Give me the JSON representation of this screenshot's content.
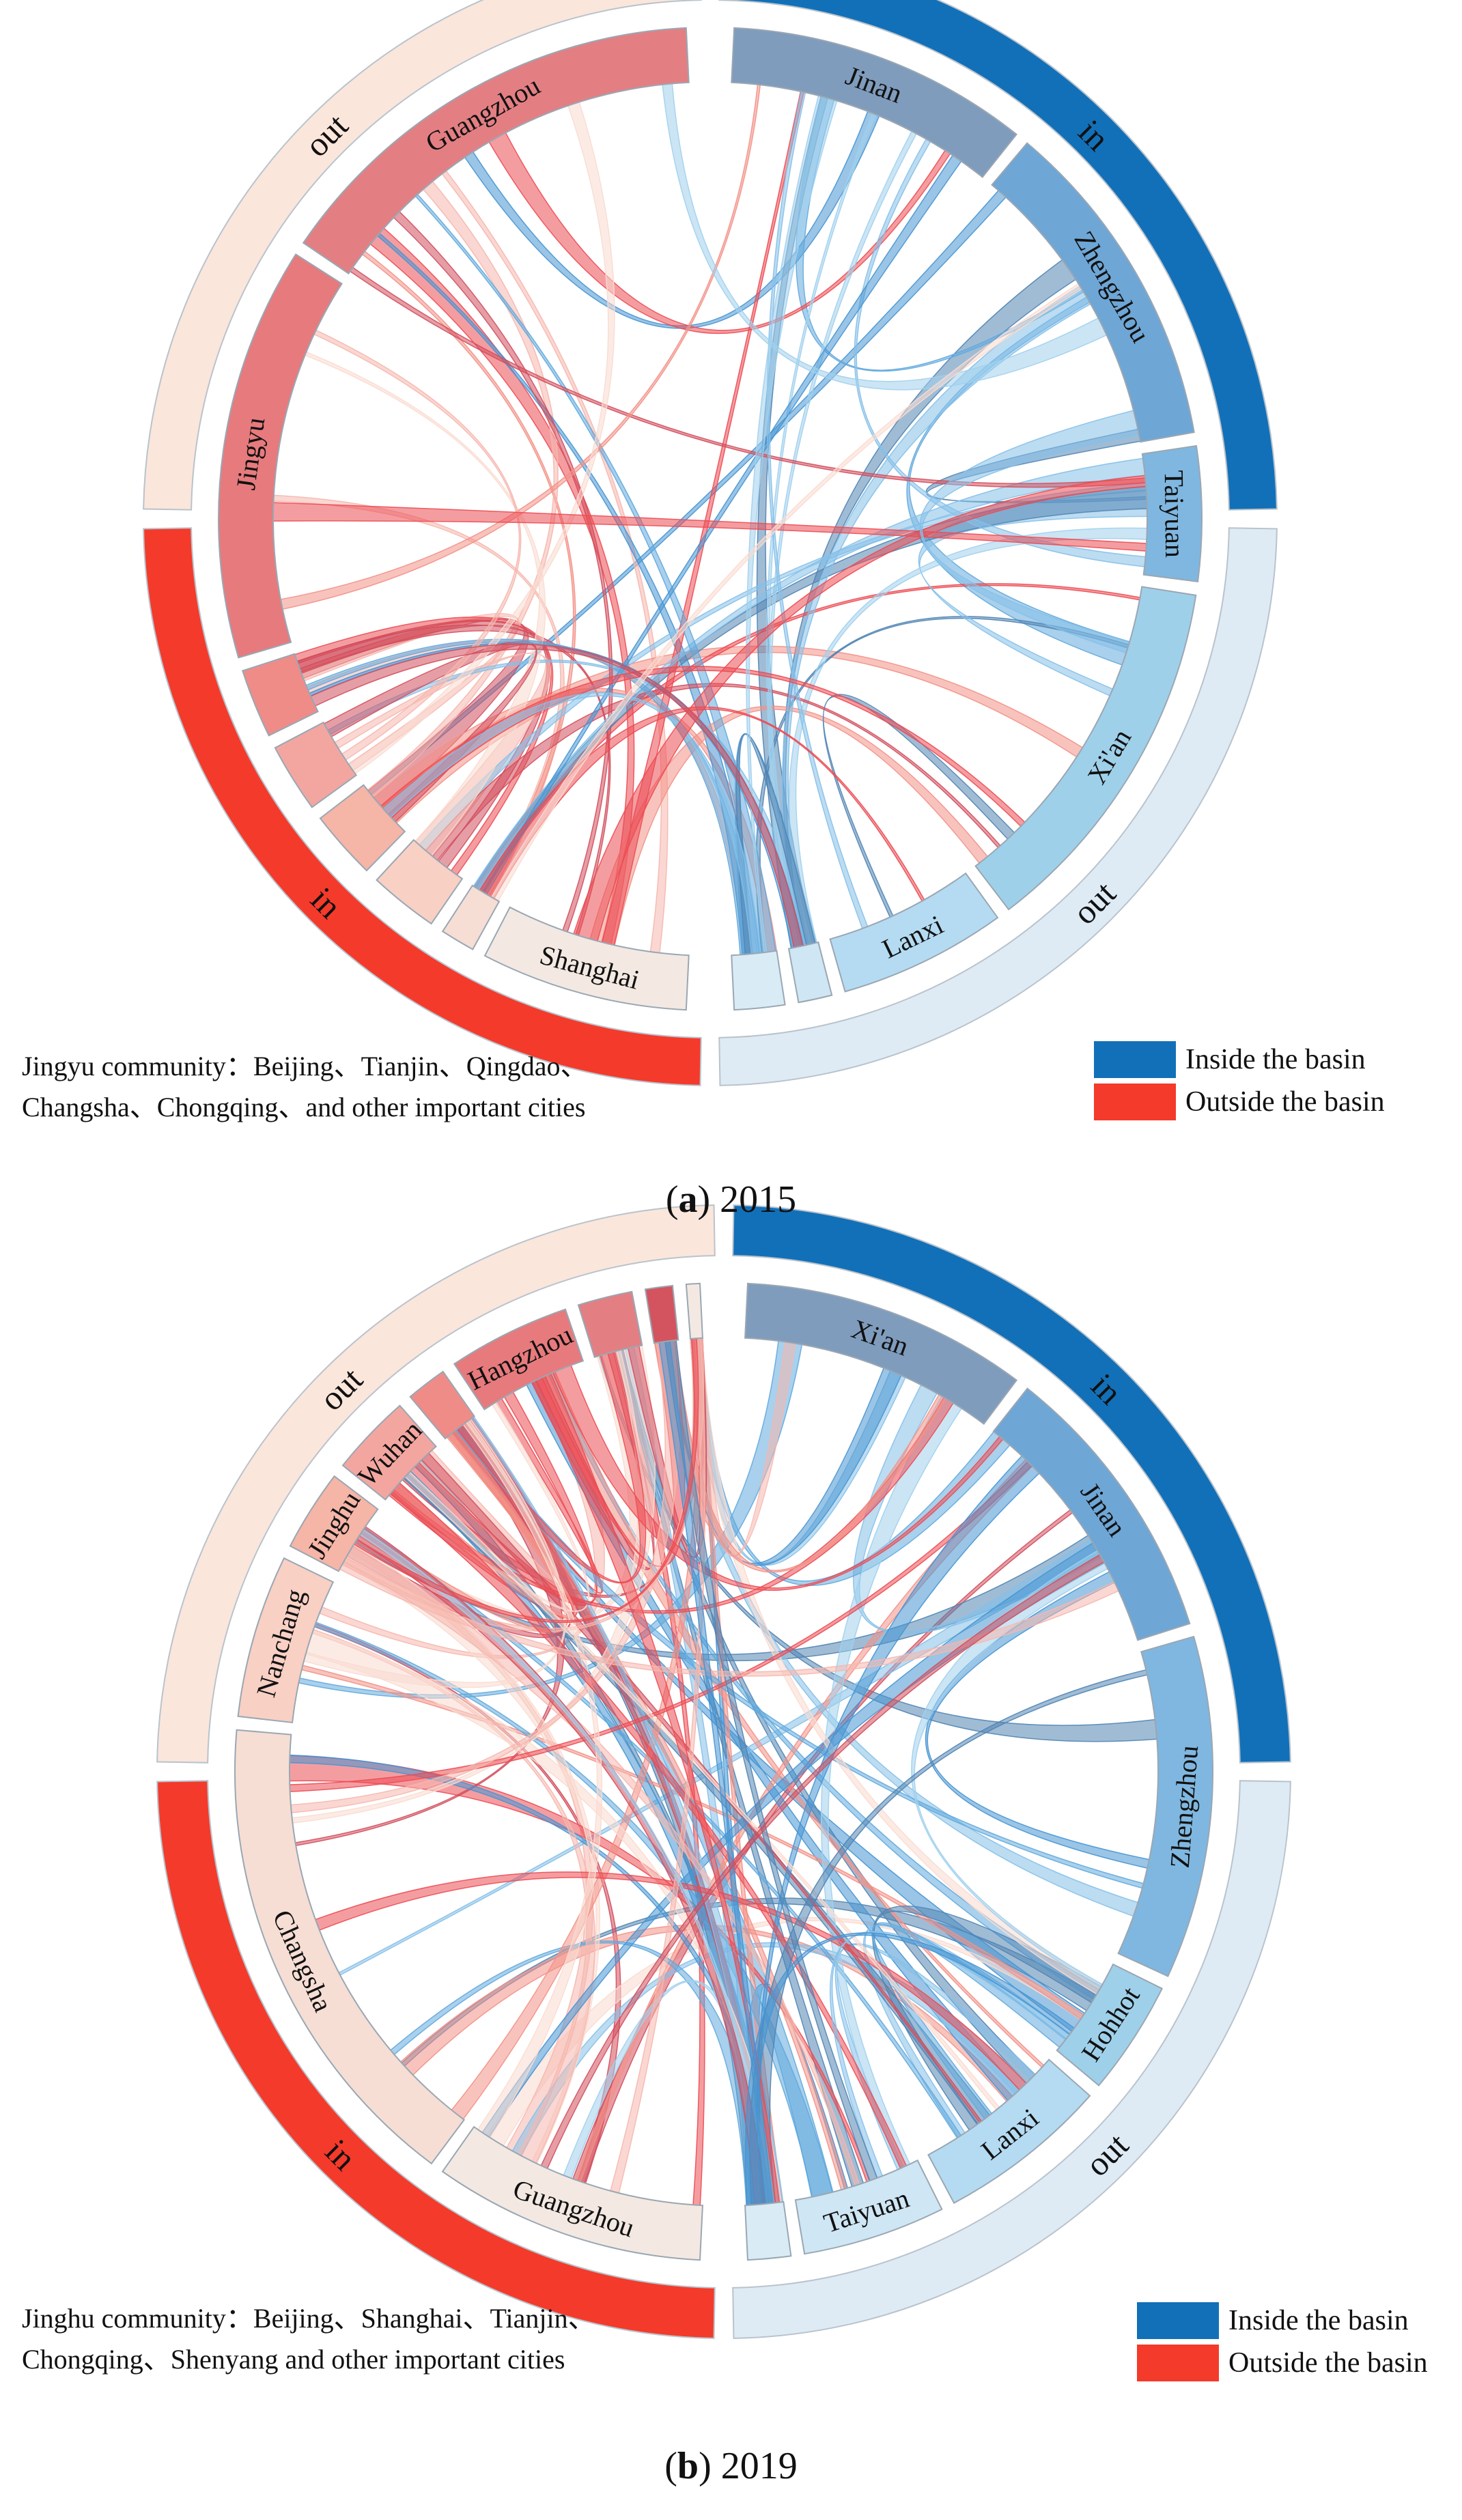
{
  "legend_items": [
    "Inside the basin",
    "Outside the basin"
  ],
  "colors": {
    "inside": "#1270b8",
    "outside": "#f43a2b"
  },
  "chart_data": [
    {
      "type": "chord",
      "panel_label": "a",
      "year": "2015",
      "outer_ring": {
        "inside_basin": [
          "in",
          "out"
        ],
        "outside_basin": [
          "out",
          "in"
        ]
      },
      "nodes": [
        {
          "label": "Jinan",
          "group": "inside",
          "share": 9
        },
        {
          "label": "Zhengzhou",
          "group": "inside",
          "share": 10
        },
        {
          "label": "Taiyuan",
          "group": "inside",
          "share": 4
        },
        {
          "label": "Xi'an",
          "group": "inside",
          "share": 11
        },
        {
          "label": "Lanxi",
          "group": "inside",
          "share": 5
        },
        {
          "label": "",
          "group": "inside",
          "share": 1
        },
        {
          "label": "",
          "group": "inside",
          "share": 1.5
        },
        {
          "label": "Shanghai",
          "group": "outside",
          "share": 6
        },
        {
          "label": "",
          "group": "outside",
          "share": 1
        },
        {
          "label": "",
          "group": "outside",
          "share": 2
        },
        {
          "label": "",
          "group": "outside",
          "share": 2
        },
        {
          "label": "",
          "group": "outside",
          "share": 2
        },
        {
          "label": "",
          "group": "outside",
          "share": 2
        },
        {
          "label": "Jingyu",
          "group": "outside",
          "share": 12
        },
        {
          "label": "Guangzhou",
          "group": "outside",
          "share": 13
        }
      ],
      "community_note": [
        "Jingyu community：Beijing、Tianjin、Qingdao、",
        "Changsha、Chongqing、and other important cities"
      ]
    },
    {
      "type": "chord",
      "panel_label": "b",
      "year": "2019",
      "outer_ring": {
        "inside_basin": [
          "in",
          "out"
        ],
        "outside_basin": [
          "out",
          "in"
        ]
      },
      "nodes": [
        {
          "label": "Xi'an",
          "group": "inside",
          "share": 10
        },
        {
          "label": "Jinan",
          "group": "inside",
          "share": 10
        },
        {
          "label": "Zhengzhou",
          "group": "inside",
          "share": 12
        },
        {
          "label": "Hohhot",
          "group": "inside",
          "share": 4
        },
        {
          "label": "Lanxi",
          "group": "inside",
          "share": 6
        },
        {
          "label": "Taiyuan",
          "group": "inside",
          "share": 5
        },
        {
          "label": "",
          "group": "inside",
          "share": 1.5
        },
        {
          "label": "Guangzhou",
          "group": "outside",
          "share": 10
        },
        {
          "label": "Changsha",
          "group": "outside",
          "share": 18
        },
        {
          "label": "Nanchang",
          "group": "outside",
          "share": 6
        },
        {
          "label": "Jinghu",
          "group": "outside",
          "share": 3
        },
        {
          "label": "Wuhan",
          "group": "outside",
          "share": 3
        },
        {
          "label": "",
          "group": "outside",
          "share": 1.5
        },
        {
          "label": "Hangzhou",
          "group": "outside",
          "share": 4.5
        },
        {
          "label": "",
          "group": "outside",
          "share": 2
        },
        {
          "label": "",
          "group": "outside",
          "share": 1
        },
        {
          "label": "",
          "group": "outside",
          "share": 0.5
        }
      ],
      "community_note": [
        "Jinghu community：Beijing、Shanghai、Tianjin、",
        "Chongqing、Shenyang and other important cities"
      ]
    }
  ]
}
